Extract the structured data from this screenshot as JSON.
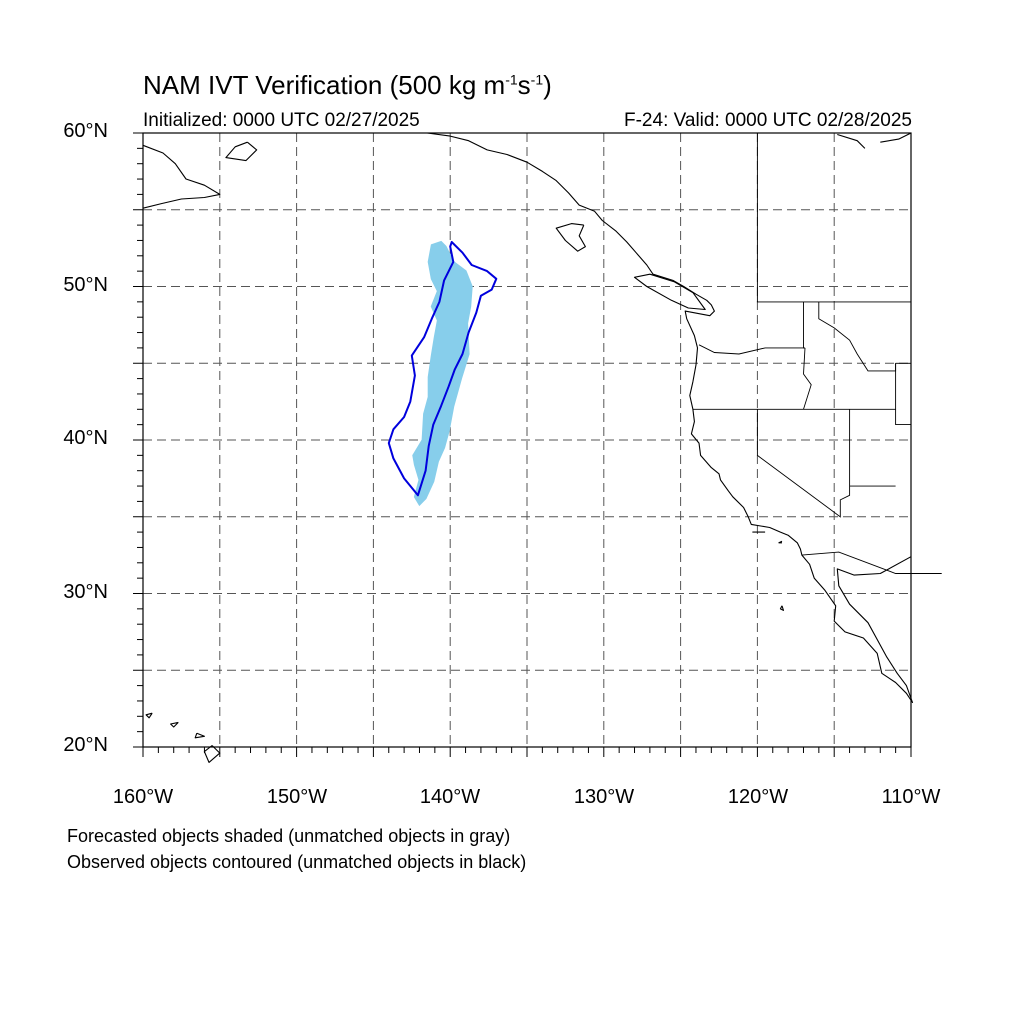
{
  "title": {
    "main": "NAM IVT Verification (500 kg m",
    "exp1": "-1",
    "mid": "s",
    "exp2": "-1",
    "end": ")"
  },
  "init_label": "Initialized: 0000 UTC 02/27/2025",
  "valid_label": "F-24: Valid: 0000 UTC 02/28/2025",
  "lat_labels": [
    "60°N",
    "50°N",
    "40°N",
    "30°N",
    "20°N"
  ],
  "lon_labels": [
    "160°W",
    "150°W",
    "140°W",
    "130°W",
    "120°W",
    "110°W"
  ],
  "notes": {
    "forecast": "Forecasted objects shaded (unmatched objects in gray)",
    "observed": "Observed objects contoured (unmatched objects in black)"
  },
  "map": {
    "lon_range": [
      -160,
      -110
    ],
    "lat_range": [
      20,
      60
    ],
    "grid_lon_step": 5,
    "grid_lat_step": 5,
    "colors": {
      "forecast_fill": "#87ceeb",
      "observed_contour": "#0000dd",
      "coast": "#000000",
      "grid": "#555555"
    },
    "forecast_object": [
      [
        -140.6,
        52.9
      ],
      [
        -140.3,
        52.6
      ],
      [
        -139.8,
        51.6
      ],
      [
        -139.0,
        51.0
      ],
      [
        -138.6,
        50.0
      ],
      [
        -138.7,
        48.7
      ],
      [
        -138.9,
        47.6
      ],
      [
        -138.8,
        45.6
      ],
      [
        -139.3,
        44.0
      ],
      [
        -139.8,
        42.2
      ],
      [
        -140.1,
        40.6
      ],
      [
        -140.4,
        39.5
      ],
      [
        -140.8,
        38.6
      ],
      [
        -141.1,
        37.3
      ],
      [
        -141.6,
        36.2
      ],
      [
        -142.0,
        35.8
      ],
      [
        -142.3,
        36.3
      ],
      [
        -142.0,
        37.4
      ],
      [
        -142.3,
        38.4
      ],
      [
        -142.4,
        39.0
      ],
      [
        -141.8,
        40.0
      ],
      [
        -141.7,
        41.7
      ],
      [
        -141.4,
        42.8
      ],
      [
        -141.4,
        44.1
      ],
      [
        -141.2,
        45.5
      ],
      [
        -141.0,
        46.7
      ],
      [
        -140.8,
        47.8
      ],
      [
        -141.2,
        48.7
      ],
      [
        -140.8,
        49.7
      ],
      [
        -141.2,
        50.5
      ],
      [
        -141.4,
        51.6
      ],
      [
        -141.2,
        52.7
      ]
    ],
    "observed_object": [
      [
        -139.9,
        52.9
      ],
      [
        -139.2,
        52.2
      ],
      [
        -138.6,
        51.4
      ],
      [
        -137.6,
        51.0
      ],
      [
        -137.0,
        50.5
      ],
      [
        -137.3,
        49.8
      ],
      [
        -138.0,
        49.4
      ],
      [
        -138.3,
        48.3
      ],
      [
        -138.8,
        47.0
      ],
      [
        -139.2,
        45.6
      ],
      [
        -139.7,
        44.6
      ],
      [
        -140.1,
        43.5
      ],
      [
        -140.6,
        42.2
      ],
      [
        -141.1,
        41.0
      ],
      [
        -141.4,
        39.6
      ],
      [
        -141.6,
        38.0
      ],
      [
        -142.1,
        36.4
      ],
      [
        -143.0,
        37.5
      ],
      [
        -143.7,
        38.8
      ],
      [
        -144.0,
        39.8
      ],
      [
        -143.7,
        40.7
      ],
      [
        -143.0,
        41.5
      ],
      [
        -142.6,
        42.5
      ],
      [
        -142.3,
        44.2
      ],
      [
        -142.5,
        45.5
      ],
      [
        -141.7,
        46.7
      ],
      [
        -141.2,
        47.9
      ],
      [
        -140.7,
        49.0
      ],
      [
        -140.4,
        50.4
      ],
      [
        -139.8,
        51.6
      ],
      [
        -140.0,
        52.6
      ]
    ],
    "coastline": [
      [
        [
          -110,
          32.4
        ],
        [
          -112,
          31.3
        ],
        [
          -113.7,
          31.2
        ],
        [
          -114.8,
          31.6
        ],
        [
          -114.7,
          30.5
        ],
        [
          -114.0,
          29.3
        ],
        [
          -112.8,
          28.1
        ],
        [
          -112.2,
          27.0
        ],
        [
          -111.6,
          25.9
        ],
        [
          -110.9,
          24.8
        ],
        [
          -110.3,
          24.0
        ],
        [
          -109.9,
          22.9
        ],
        [
          -110.3,
          23.5
        ],
        [
          -111.0,
          24.2
        ],
        [
          -111.9,
          24.8
        ],
        [
          -112.2,
          26.1
        ],
        [
          -113.1,
          27.1
        ],
        [
          -114.3,
          27.5
        ],
        [
          -115.0,
          28.2
        ],
        [
          -114.9,
          29.2
        ],
        [
          -115.6,
          30.2
        ],
        [
          -116.3,
          31.0
        ],
        [
          -116.6,
          31.9
        ],
        [
          -117.1,
          32.5
        ],
        [
          -117.2,
          32.9
        ],
        [
          -117.4,
          33.3
        ],
        [
          -118.0,
          33.8
        ],
        [
          -118.5,
          34.0
        ],
        [
          -119.2,
          34.3
        ],
        [
          -120.4,
          34.5
        ],
        [
          -120.6,
          35.0
        ],
        [
          -120.9,
          35.6
        ],
        [
          -121.6,
          36.3
        ],
        [
          -121.9,
          36.7
        ],
        [
          -122.4,
          37.4
        ],
        [
          -122.5,
          37.8
        ],
        [
          -123.0,
          38.2
        ],
        [
          -123.7,
          39.0
        ],
        [
          -123.8,
          39.8
        ],
        [
          -124.3,
          40.4
        ],
        [
          -124.1,
          41.2
        ],
        [
          -124.2,
          42.0
        ],
        [
          -124.4,
          42.9
        ],
        [
          -124.2,
          43.8
        ],
        [
          -124.0,
          44.9
        ],
        [
          -123.9,
          46.0
        ],
        [
          -124.1,
          46.8
        ],
        [
          -124.6,
          47.9
        ],
        [
          -124.7,
          48.4
        ],
        [
          -123.1,
          48.1
        ],
        [
          -122.8,
          48.4
        ],
        [
          -123.0,
          48.8
        ],
        [
          -123.3,
          49.1
        ],
        [
          -124.0,
          49.5
        ],
        [
          -124.8,
          50.0
        ],
        [
          -125.5,
          50.4
        ],
        [
          -126.8,
          50.8
        ],
        [
          -127.2,
          51.4
        ],
        [
          -127.9,
          52.2
        ],
        [
          -128.5,
          52.9
        ],
        [
          -129.2,
          53.6
        ],
        [
          -130.1,
          54.3
        ],
        [
          -130.6,
          54.9
        ],
        [
          -131.6,
          55.3
        ],
        [
          -132.3,
          56.1
        ],
        [
          -133.1,
          56.9
        ],
        [
          -134.0,
          57.5
        ],
        [
          -135.0,
          58.1
        ],
        [
          -136.3,
          58.6
        ],
        [
          -137.6,
          58.9
        ],
        [
          -138.8,
          59.5
        ],
        [
          -140.0,
          59.8
        ],
        [
          -141.5,
          60.0
        ]
      ],
      [
        [
          -160,
          59.2
        ],
        [
          -158.7,
          58.7
        ],
        [
          -157.9,
          58.0
        ],
        [
          -157.2,
          57.0
        ],
        [
          -156.0,
          56.6
        ],
        [
          -155.0,
          56.0
        ],
        [
          -156.0,
          55.8
        ],
        [
          -157.5,
          55.7
        ],
        [
          -158.8,
          55.4
        ],
        [
          -160,
          55.1
        ]
      ],
      [
        [
          -153.2,
          59.4
        ],
        [
          -154.0,
          59.1
        ],
        [
          -154.6,
          58.4
        ],
        [
          -153.3,
          58.2
        ],
        [
          -152.6,
          58.9
        ],
        [
          -153.2,
          59.4
        ]
      ],
      [
        [
          -131.3,
          54.0
        ],
        [
          -132.1,
          54.1
        ],
        [
          -133.1,
          53.8
        ],
        [
          -132.5,
          53.0
        ],
        [
          -131.7,
          52.3
        ],
        [
          -131.2,
          52.6
        ],
        [
          -131.6,
          53.3
        ],
        [
          -131.3,
          54.0
        ]
      ],
      [
        [
          -125.4,
          50.3
        ],
        [
          -124.2,
          49.6
        ],
        [
          -123.4,
          48.5
        ],
        [
          -124.5,
          48.6
        ],
        [
          -125.6,
          49.1
        ],
        [
          -127.2,
          50.0
        ],
        [
          -128.0,
          50.6
        ],
        [
          -127.0,
          50.8
        ],
        [
          -125.4,
          50.3
        ]
      ],
      [
        [
          -110,
          60.0
        ],
        [
          -110.8,
          59.6
        ],
        [
          -112.0,
          59.4
        ]
      ],
      [
        [
          -114.8,
          59.9
        ],
        [
          -113.5,
          59.5
        ],
        [
          -113.0,
          59.0
        ]
      ],
      [
        [
          -155.5,
          20.1
        ],
        [
          -155.0,
          19.6
        ],
        [
          -155.7,
          19.0
        ],
        [
          -156.0,
          19.7
        ],
        [
          -155.5,
          20.1
        ]
      ],
      [
        [
          -156.5,
          20.9
        ],
        [
          -156.0,
          20.7
        ],
        [
          -156.6,
          20.6
        ],
        [
          -156.5,
          20.9
        ]
      ],
      [
        [
          -157.7,
          21.6
        ],
        [
          -158.2,
          21.5
        ],
        [
          -158.0,
          21.3
        ],
        [
          -157.7,
          21.6
        ]
      ],
      [
        [
          -159.4,
          22.2
        ],
        [
          -159.8,
          22.1
        ],
        [
          -159.6,
          21.9
        ],
        [
          -159.4,
          22.2
        ]
      ],
      [
        [
          -118.4,
          29.2
        ],
        [
          -118.3,
          28.9
        ],
        [
          -118.5,
          29.0
        ],
        [
          -118.4,
          29.2
        ]
      ],
      [
        [
          -118.4,
          33.4
        ],
        [
          -118.6,
          33.3
        ],
        [
          -118.4,
          33.3
        ]
      ],
      [
        [
          -119.8,
          34.0
        ],
        [
          -120.3,
          34.0
        ],
        [
          -119.5,
          34.0
        ]
      ]
    ],
    "borders": [
      [
        [
          -120,
          60
        ],
        [
          -120,
          49
        ],
        [
          -110,
          49
        ]
      ],
      [
        [
          -117.1,
          32.5
        ],
        [
          -114.7,
          32.7
        ],
        [
          -111,
          31.3
        ],
        [
          -108,
          31.3
        ]
      ],
      [
        [
          -124.2,
          42
        ],
        [
          -117,
          42
        ],
        [
          -111,
          42
        ]
      ],
      [
        [
          -120,
          42
        ],
        [
          -120,
          39
        ],
        [
          -114.6,
          35
        ],
        [
          -114.6,
          36.1
        ],
        [
          -114,
          36.4
        ],
        [
          -114,
          42
        ]
      ],
      [
        [
          -116.9,
          46
        ],
        [
          -117,
          44.3
        ],
        [
          -116.5,
          43.6
        ],
        [
          -117,
          42
        ]
      ],
      [
        [
          -117,
          49
        ],
        [
          -117,
          46
        ],
        [
          -116.9,
          46
        ]
      ],
      [
        [
          -116,
          49
        ],
        [
          -116,
          47.9
        ],
        [
          -115,
          47.3
        ],
        [
          -114,
          46.5
        ],
        [
          -113.5,
          45.6
        ],
        [
          -112.8,
          44.5
        ],
        [
          -111,
          44.5
        ],
        [
          -111,
          45
        ]
      ],
      [
        [
          -111,
          45
        ],
        [
          -110,
          45
        ]
      ],
      [
        [
          -123.8,
          46.2
        ],
        [
          -122.8,
          45.7
        ],
        [
          -121.2,
          45.6
        ],
        [
          -119.5,
          46
        ],
        [
          -116.9,
          46
        ]
      ],
      [
        [
          -114,
          37
        ],
        [
          -111,
          37
        ]
      ],
      [
        [
          -110,
          41
        ],
        [
          -111,
          41
        ],
        [
          -111,
          45
        ]
      ]
    ]
  }
}
